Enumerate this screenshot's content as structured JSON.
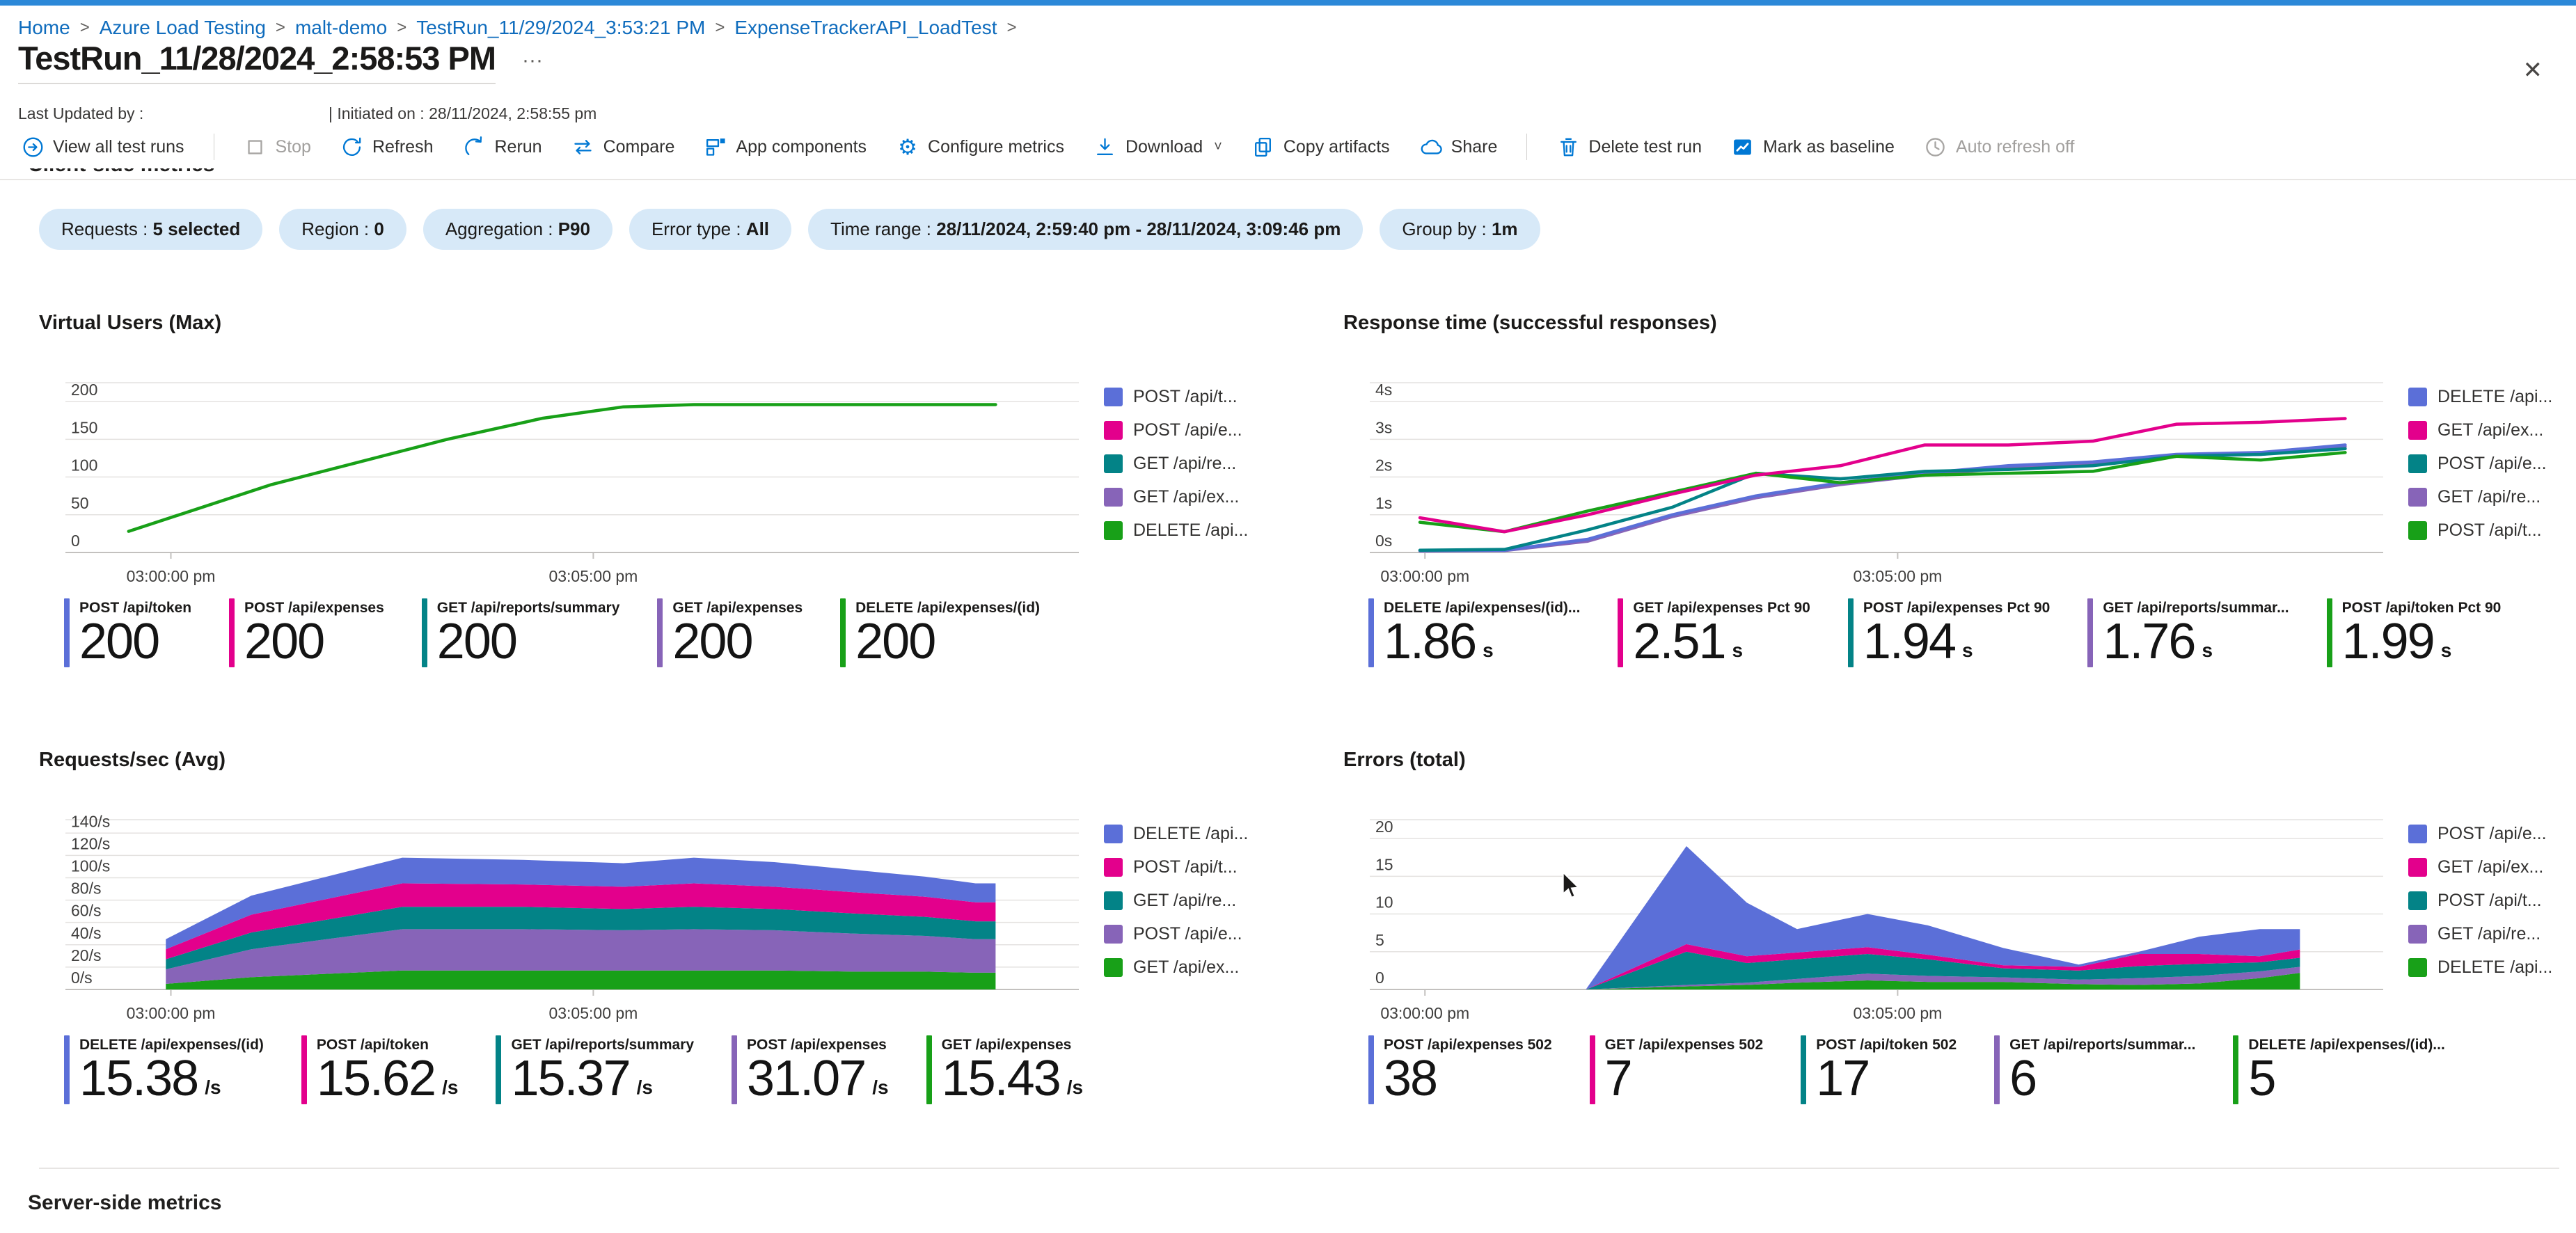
{
  "window": {
    "close_label": "✕"
  },
  "breadcrumb": {
    "separator": ">",
    "items": [
      "Home",
      "Azure Load Testing",
      "malt-demo",
      "TestRun_11/29/2024_3:53:21 PM",
      "ExpenseTrackerAPI_LoadTest"
    ]
  },
  "header": {
    "title": "TestRun_11/28/2024_2:58:53 PM",
    "more_label": "···",
    "last_updated_label": "Last Updated by :",
    "initiated_label": "| Initiated on : 28/11/2024, 2:58:55 pm"
  },
  "toolbar": {
    "items": [
      {
        "label": "View all test runs",
        "icon": "view-all-test-runs-icon"
      },
      {
        "sep": true
      },
      {
        "label": "Stop",
        "icon": "stop-icon",
        "disabled": true
      },
      {
        "label": "Refresh",
        "icon": "refresh-icon"
      },
      {
        "label": "Rerun",
        "icon": "rerun-icon"
      },
      {
        "label": "Compare",
        "icon": "compare-icon"
      },
      {
        "label": "App components",
        "icon": "app-components-icon"
      },
      {
        "label": "Configure metrics",
        "icon": "gear-icon"
      },
      {
        "label": "Download",
        "icon": "download-icon",
        "chevron": true
      },
      {
        "label": "Copy artifacts",
        "icon": "copy-icon"
      },
      {
        "label": "Share",
        "icon": "share-icon"
      },
      {
        "sep": true
      },
      {
        "label": "Delete test run",
        "icon": "trash-icon"
      },
      {
        "label": "Mark as baseline",
        "icon": "baseline-icon"
      },
      {
        "label": "Auto refresh off",
        "icon": "clock-icon",
        "disabled": true
      }
    ]
  },
  "filters": [
    {
      "label": "Requests",
      "value": "5 selected"
    },
    {
      "label": "Region",
      "value": "0"
    },
    {
      "label": "Aggregation",
      "value": "P90"
    },
    {
      "label": "Error type",
      "value": "All"
    },
    {
      "label": "Time range",
      "value": "28/11/2024, 2:59:40 pm - 28/11/2024, 3:09:46 pm"
    },
    {
      "label": "Group by",
      "value": "1m"
    }
  ],
  "section_headers": {
    "client": "Client-side metrics",
    "server": "Server-side metrics"
  },
  "palette": {
    "blue": "#5B6FD8",
    "pink": "#E3008C",
    "teal": "#038387",
    "purple": "#8764B8",
    "green": "#18A018"
  },
  "chart_data": [
    {
      "id": "virtual-users",
      "type": "line",
      "title": "Virtual Users (Max)",
      "ylim": [
        0,
        225
      ],
      "yticks": [
        {
          "v": 0,
          "label": "0"
        },
        {
          "v": 50,
          "label": "50"
        },
        {
          "v": 100,
          "label": "100"
        },
        {
          "v": 150,
          "label": "150"
        },
        {
          "v": 200,
          "label": "200"
        }
      ],
      "xticks": [
        {
          "f": 0.1,
          "label": "03:00:00 pm"
        },
        {
          "f": 0.52,
          "label": "03:05:00 pm"
        }
      ],
      "series": [
        {
          "name": "Virtual Users",
          "color": "green",
          "points": [
            [
              0.058,
              28
            ],
            [
              0.2,
              90
            ],
            [
              0.375,
              150
            ],
            [
              0.47,
              178
            ],
            [
              0.55,
              193
            ],
            [
              0.62,
              196
            ],
            [
              0.92,
              196
            ]
          ]
        }
      ],
      "legend": [
        {
          "label": "POST /api/t...",
          "color": "blue"
        },
        {
          "label": "POST /api/e...",
          "color": "pink"
        },
        {
          "label": "GET /api/re...",
          "color": "teal"
        },
        {
          "label": "GET /api/ex...",
          "color": "purple"
        },
        {
          "label": "DELETE /api...",
          "color": "green"
        }
      ],
      "cards": [
        {
          "label": "POST /api/token",
          "value": "200",
          "unit": "",
          "color": "blue"
        },
        {
          "label": "POST /api/expenses",
          "value": "200",
          "unit": "",
          "color": "pink"
        },
        {
          "label": "GET /api/reports/summary",
          "value": "200",
          "unit": "",
          "color": "teal"
        },
        {
          "label": "GET /api/expenses",
          "value": "200",
          "unit": "",
          "color": "purple"
        },
        {
          "label": "DELETE /api/expenses/(id)",
          "value": "200",
          "unit": "",
          "color": "green"
        }
      ]
    },
    {
      "id": "response-time",
      "type": "line",
      "title": "Response time (successful responses)",
      "ylim": [
        0,
        4.5
      ],
      "yticks": [
        {
          "v": 0,
          "label": "0s"
        },
        {
          "v": 1,
          "label": "1s"
        },
        {
          "v": 2,
          "label": "2s"
        },
        {
          "v": 3,
          "label": "3s"
        },
        {
          "v": 4,
          "label": "4s"
        }
      ],
      "xticks": [
        {
          "f": 0.05,
          "label": "03:00:00 pm"
        },
        {
          "f": 0.52,
          "label": "03:05:00 pm"
        }
      ],
      "x_f": [
        0.045,
        0.129,
        0.212,
        0.296,
        0.379,
        0.463,
        0.547,
        0.63,
        0.714,
        0.797,
        0.881,
        0.965
      ],
      "series": [
        {
          "name": "GET /api/reports/summary Pct 90",
          "color": "purple",
          "values": [
            0.04,
            0.05,
            0.3,
            0.95,
            1.45,
            1.8,
            2.05,
            2.25,
            2.35,
            2.55,
            2.6,
            2.8
          ]
        },
        {
          "name": "DELETE /api/expenses/(id) Pct 90",
          "color": "blue",
          "values": [
            0.05,
            0.06,
            0.35,
            1.0,
            1.5,
            1.85,
            2.1,
            2.3,
            2.4,
            2.6,
            2.65,
            2.85
          ]
        },
        {
          "name": "POST /api/expenses Pct 90",
          "color": "teal",
          "values": [
            0.06,
            0.08,
            0.6,
            1.2,
            2.1,
            1.95,
            2.15,
            2.2,
            2.3,
            2.55,
            2.6,
            2.75
          ]
        },
        {
          "name": "POST /api/token Pct 90",
          "color": "green",
          "values": [
            0.8,
            0.55,
            1.1,
            1.6,
            2.1,
            1.85,
            2.05,
            2.1,
            2.15,
            2.55,
            2.45,
            2.65
          ]
        },
        {
          "name": "GET /api/expenses Pct 90",
          "color": "pink",
          "values": [
            0.92,
            0.55,
            1.0,
            1.55,
            2.05,
            2.3,
            2.85,
            2.85,
            2.95,
            3.4,
            3.45,
            3.55
          ]
        }
      ],
      "legend": [
        {
          "label": "DELETE /api...",
          "color": "blue"
        },
        {
          "label": "GET /api/ex...",
          "color": "pink"
        },
        {
          "label": "POST /api/e...",
          "color": "teal"
        },
        {
          "label": "GET /api/re...",
          "color": "purple"
        },
        {
          "label": "POST /api/t...",
          "color": "green"
        }
      ],
      "cards": [
        {
          "label": "DELETE /api/expenses/(id)...",
          "value": "1.86",
          "unit": "s",
          "color": "blue"
        },
        {
          "label": "GET /api/expenses Pct 90",
          "value": "2.51",
          "unit": "s",
          "color": "pink"
        },
        {
          "label": "POST /api/expenses Pct 90",
          "value": "1.94",
          "unit": "s",
          "color": "teal"
        },
        {
          "label": "GET /api/reports/summar...",
          "value": "1.76",
          "unit": "s",
          "color": "purple"
        },
        {
          "label": "POST /api/token Pct 90",
          "value": "1.99",
          "unit": "s",
          "color": "green"
        }
      ]
    },
    {
      "id": "requests-per-sec",
      "type": "area-stacked",
      "title": "Requests/sec (Avg)",
      "ylim": [
        0,
        152
      ],
      "yticks": [
        {
          "v": 0,
          "label": "0/s"
        },
        {
          "v": 20,
          "label": "20/s"
        },
        {
          "v": 40,
          "label": "40/s"
        },
        {
          "v": 60,
          "label": "60/s"
        },
        {
          "v": 80,
          "label": "80/s"
        },
        {
          "v": 100,
          "label": "100/s"
        },
        {
          "v": 120,
          "label": "120/s"
        },
        {
          "v": 140,
          "label": "140/s"
        }
      ],
      "xticks": [
        {
          "f": 0.1,
          "label": "03:00:00 pm"
        },
        {
          "f": 0.52,
          "label": "03:05:00 pm"
        }
      ],
      "x_f": [
        0.095,
        0.18,
        0.33,
        0.45,
        0.55,
        0.62,
        0.7,
        0.78,
        0.85,
        0.9,
        0.92
      ],
      "series": [
        {
          "name": "GET /api/expenses",
          "color": "green",
          "values": [
            5,
            11,
            17,
            17,
            17,
            17,
            17,
            16,
            16,
            15,
            15
          ]
        },
        {
          "name": "POST /api/expenses",
          "color": "purple",
          "values": [
            13,
            25,
            37,
            37,
            36,
            37,
            36,
            34,
            32,
            30,
            30
          ]
        },
        {
          "name": "GET /api/reports/summary",
          "color": "teal",
          "values": [
            9,
            15,
            20,
            20,
            19,
            20,
            19,
            18,
            17,
            16,
            16
          ]
        },
        {
          "name": "POST /api/token",
          "color": "pink",
          "values": [
            9,
            16,
            21,
            20,
            20,
            21,
            20,
            19,
            18,
            17,
            17
          ]
        },
        {
          "name": "DELETE /api/expenses/(id)",
          "color": "blue",
          "values": [
            9,
            17,
            23,
            22,
            21,
            23,
            22,
            20,
            18,
            17,
            17
          ]
        }
      ],
      "legend": [
        {
          "label": "DELETE /api...",
          "color": "blue"
        },
        {
          "label": "POST /api/t...",
          "color": "pink"
        },
        {
          "label": "GET /api/re...",
          "color": "teal"
        },
        {
          "label": "POST /api/e...",
          "color": "purple"
        },
        {
          "label": "GET /api/ex...",
          "color": "green"
        }
      ],
      "cards": [
        {
          "label": "DELETE /api/expenses/(id)",
          "value": "15.38",
          "unit": "/s",
          "color": "blue"
        },
        {
          "label": "POST /api/token",
          "value": "15.62",
          "unit": "/s",
          "color": "pink"
        },
        {
          "label": "GET /api/reports/summary",
          "value": "15.37",
          "unit": "/s",
          "color": "teal"
        },
        {
          "label": "POST /api/expenses",
          "value": "31.07",
          "unit": "/s",
          "color": "purple"
        },
        {
          "label": "GET /api/expenses",
          "value": "15.43",
          "unit": "/s",
          "color": "green"
        }
      ]
    },
    {
      "id": "errors-total",
      "type": "area-stacked",
      "title": "Errors (total)",
      "ylim": [
        0,
        22.5
      ],
      "yticks": [
        {
          "v": 0,
          "label": "0"
        },
        {
          "v": 5,
          "label": "5"
        },
        {
          "v": 10,
          "label": "10"
        },
        {
          "v": 15,
          "label": "15"
        },
        {
          "v": 20,
          "label": "20"
        }
      ],
      "xticks": [
        {
          "f": 0.05,
          "label": "03:00:00 pm"
        },
        {
          "f": 0.52,
          "label": "03:05:00 pm"
        }
      ],
      "x_f": [
        0.21,
        0.31,
        0.37,
        0.42,
        0.49,
        0.55,
        0.625,
        0.7,
        0.76,
        0.82,
        0.88,
        0.92
      ],
      "series": [
        {
          "name": "DELETE /api/expenses/(id) 502",
          "color": "green",
          "values": [
            0,
            0.4,
            0.6,
            0.9,
            1.2,
            1.0,
            1.0,
            0.7,
            0.6,
            0.8,
            1.5,
            2.2
          ]
        },
        {
          "name": "GET /api/reports/summary 502",
          "color": "purple",
          "values": [
            0,
            0.2,
            0.3,
            0.5,
            0.9,
            0.8,
            0.6,
            0.6,
            0.9,
            1.0,
            0.9,
            0.8
          ]
        },
        {
          "name": "POST /api/token 502",
          "color": "teal",
          "values": [
            0,
            4.4,
            2.6,
            2.6,
            2.6,
            2.2,
            1.2,
            1.2,
            1.6,
            1.6,
            1.2,
            1.2
          ]
        },
        {
          "name": "GET /api/expenses 502",
          "color": "pink",
          "values": [
            0,
            1.0,
            0.9,
            0.9,
            0.9,
            0.6,
            0.4,
            0.5,
            1.6,
            1.3,
            0.8,
            1.1
          ]
        },
        {
          "name": "POST /api/expenses 502",
          "color": "blue",
          "values": [
            0,
            13.0,
            7.1,
            3.1,
            4.4,
            3.9,
            2.3,
            0.3,
            0.3,
            2.3,
            3.6,
            2.7
          ]
        }
      ],
      "legend": [
        {
          "label": "POST /api/e...",
          "color": "blue"
        },
        {
          "label": "GET /api/ex...",
          "color": "pink"
        },
        {
          "label": "POST /api/t...",
          "color": "teal"
        },
        {
          "label": "GET /api/re...",
          "color": "purple"
        },
        {
          "label": "DELETE /api...",
          "color": "green"
        }
      ],
      "cards": [
        {
          "label": "POST /api/expenses 502",
          "value": "38",
          "unit": "",
          "color": "blue"
        },
        {
          "label": "GET /api/expenses 502",
          "value": "7",
          "unit": "",
          "color": "pink"
        },
        {
          "label": "POST /api/token 502",
          "value": "17",
          "unit": "",
          "color": "teal"
        },
        {
          "label": "GET /api/reports/summar...",
          "value": "6",
          "unit": "",
          "color": "purple"
        },
        {
          "label": "DELETE /api/expenses/(id)...",
          "value": "5",
          "unit": "",
          "color": "green"
        }
      ]
    }
  ]
}
